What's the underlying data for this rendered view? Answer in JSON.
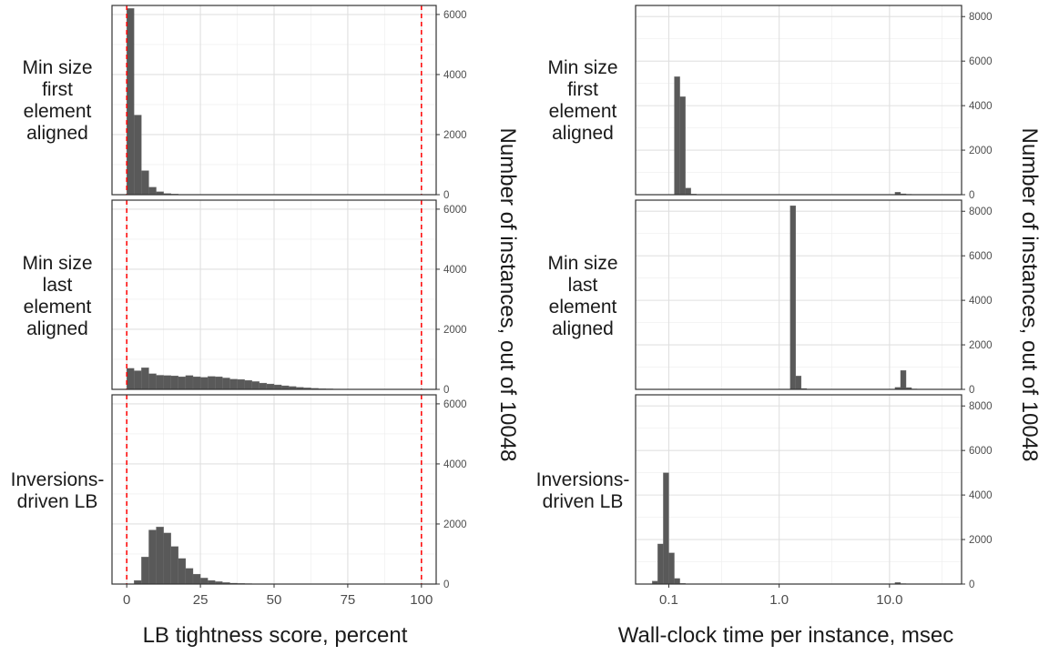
{
  "chart_data": [
    {
      "type": "bar",
      "xlabel": "LB tightness score, percent",
      "ylabel": "Number of instances, out of 10048",
      "x_scale": "linear",
      "xlim": [
        -5,
        105
      ],
      "x_ticks": [
        "0",
        "25",
        "50",
        "75",
        "100"
      ],
      "x_tick_values": [
        0,
        25,
        50,
        75,
        100
      ],
      "ylim": [
        0,
        6300
      ],
      "y_ticks": [
        "0",
        "2000",
        "4000",
        "6000"
      ],
      "y_tick_values": [
        0,
        2000,
        4000,
        6000
      ],
      "reference_lines": [
        0,
        100
      ],
      "reference_line_color": "#ff0000",
      "bar_color": "#595959",
      "grid": true,
      "panels": [
        {
          "label": "Min size\nfirst\nelement\naligned",
          "bins": [
            [
              0,
              2.5,
              6200
            ],
            [
              2.5,
              5,
              2650
            ],
            [
              5,
              7.5,
              800
            ],
            [
              7.5,
              10,
              250
            ],
            [
              10,
              12.5,
              100
            ],
            [
              12.5,
              15,
              40
            ],
            [
              15,
              17.5,
              20
            ],
            [
              17.5,
              20,
              10
            ],
            [
              20,
              22.5,
              8
            ],
            [
              22.5,
              25,
              5
            ],
            [
              25,
              27.5,
              3
            ]
          ]
        },
        {
          "label": "Min size\nlast\nelement\naligned",
          "bins": [
            [
              0,
              2.5,
              700
            ],
            [
              2.5,
              5,
              620
            ],
            [
              5,
              7.5,
              720
            ],
            [
              7.5,
              10,
              520
            ],
            [
              10,
              12.5,
              470
            ],
            [
              12.5,
              15,
              460
            ],
            [
              15,
              17.5,
              450
            ],
            [
              17.5,
              20,
              420
            ],
            [
              20,
              22.5,
              460
            ],
            [
              22.5,
              25,
              420
            ],
            [
              25,
              27.5,
              400
            ],
            [
              27.5,
              30,
              430
            ],
            [
              30,
              32.5,
              420
            ],
            [
              32.5,
              35,
              380
            ],
            [
              35,
              37.5,
              340
            ],
            [
              37.5,
              40,
              330
            ],
            [
              40,
              42.5,
              300
            ],
            [
              42.5,
              45,
              260
            ],
            [
              45,
              47.5,
              210
            ],
            [
              47.5,
              50,
              180
            ],
            [
              50,
              52.5,
              150
            ],
            [
              52.5,
              55,
              120
            ],
            [
              55,
              57.5,
              95
            ],
            [
              57.5,
              60,
              70
            ],
            [
              60,
              62.5,
              50
            ],
            [
              62.5,
              65,
              35
            ],
            [
              65,
              67.5,
              25
            ],
            [
              67.5,
              70,
              18
            ],
            [
              70,
              72.5,
              12
            ],
            [
              72.5,
              75,
              8
            ],
            [
              75,
              77.5,
              5
            ],
            [
              77.5,
              80,
              3
            ]
          ]
        },
        {
          "label": "Inversions-\ndriven LB",
          "bins": [
            [
              0,
              2.5,
              10
            ],
            [
              2.5,
              5,
              120
            ],
            [
              5,
              7.5,
              900
            ],
            [
              7.5,
              10,
              1800
            ],
            [
              10,
              12.5,
              1900
            ],
            [
              12.5,
              15,
              1700
            ],
            [
              15,
              17.5,
              1250
            ],
            [
              17.5,
              20,
              850
            ],
            [
              20,
              22.5,
              520
            ],
            [
              22.5,
              25,
              330
            ],
            [
              25,
              27.5,
              200
            ],
            [
              27.5,
              30,
              120
            ],
            [
              30,
              32.5,
              80
            ],
            [
              32.5,
              35,
              50
            ],
            [
              35,
              37.5,
              30
            ],
            [
              37.5,
              40,
              20
            ],
            [
              40,
              42.5,
              15
            ],
            [
              42.5,
              45,
              10
            ],
            [
              45,
              47.5,
              8
            ],
            [
              47.5,
              50,
              6
            ],
            [
              50,
              52.5,
              4
            ],
            [
              52.5,
              55,
              3
            ],
            [
              55,
              57.5,
              2
            ],
            [
              57.5,
              60,
              2
            ]
          ]
        }
      ]
    },
    {
      "type": "bar",
      "xlabel": "Wall-clock time per instance, msec",
      "ylabel": "Number of instances, out of 10048",
      "x_scale": "log10",
      "xlim": [
        0.05,
        45
      ],
      "x_ticks": [
        "0.1",
        "1.0",
        "10.0"
      ],
      "x_tick_values": [
        0.1,
        1,
        10
      ],
      "ylim": [
        0,
        8500
      ],
      "y_ticks": [
        "0",
        "2000",
        "4000",
        "6000",
        "8000"
      ],
      "y_tick_values": [
        0,
        2000,
        4000,
        6000,
        8000
      ],
      "bar_color": "#595959",
      "grid": true,
      "panels": [
        {
          "label": "Min size\nfirst\nelement\naligned",
          "bins": [
            [
              0.1122,
              0.1259,
              5300
            ],
            [
              0.1259,
              0.1413,
              4400
            ],
            [
              0.1413,
              0.1585,
              300
            ],
            [
              0.1585,
              0.1778,
              30
            ],
            [
              0.1778,
              0.1995,
              10
            ],
            [
              0.1995,
              0.2239,
              5
            ],
            [
              11.22,
              12.59,
              110
            ],
            [
              12.59,
              14.13,
              40
            ],
            [
              14.13,
              15.85,
              20
            ],
            [
              15.85,
              17.78,
              10
            ]
          ]
        },
        {
          "label": "Min size\nlast\nelement\naligned",
          "bins": [
            [
              1.259,
              1.413,
              8250
            ],
            [
              1.413,
              1.585,
              600
            ],
            [
              1.585,
              1.778,
              40
            ],
            [
              2.239,
              2.512,
              10
            ],
            [
              11.22,
              12.59,
              90
            ],
            [
              12.59,
              14.13,
              850
            ],
            [
              14.13,
              15.85,
              80
            ],
            [
              15.85,
              17.78,
              20
            ],
            [
              17.78,
              19.95,
              10
            ]
          ]
        },
        {
          "label": "Inversions-\ndriven LB",
          "bins": [
            [
              0.0708,
              0.0794,
              130
            ],
            [
              0.0794,
              0.0891,
              1800
            ],
            [
              0.0891,
              0.1,
              5000
            ],
            [
              0.1,
              0.1122,
              1400
            ],
            [
              0.1122,
              0.1259,
              250
            ],
            [
              0.1259,
              0.1413,
              30
            ],
            [
              0.1413,
              0.1585,
              8
            ],
            [
              11.22,
              12.59,
              70
            ],
            [
              12.59,
              14.13,
              20
            ],
            [
              14.13,
              15.85,
              10
            ]
          ]
        }
      ]
    }
  ]
}
